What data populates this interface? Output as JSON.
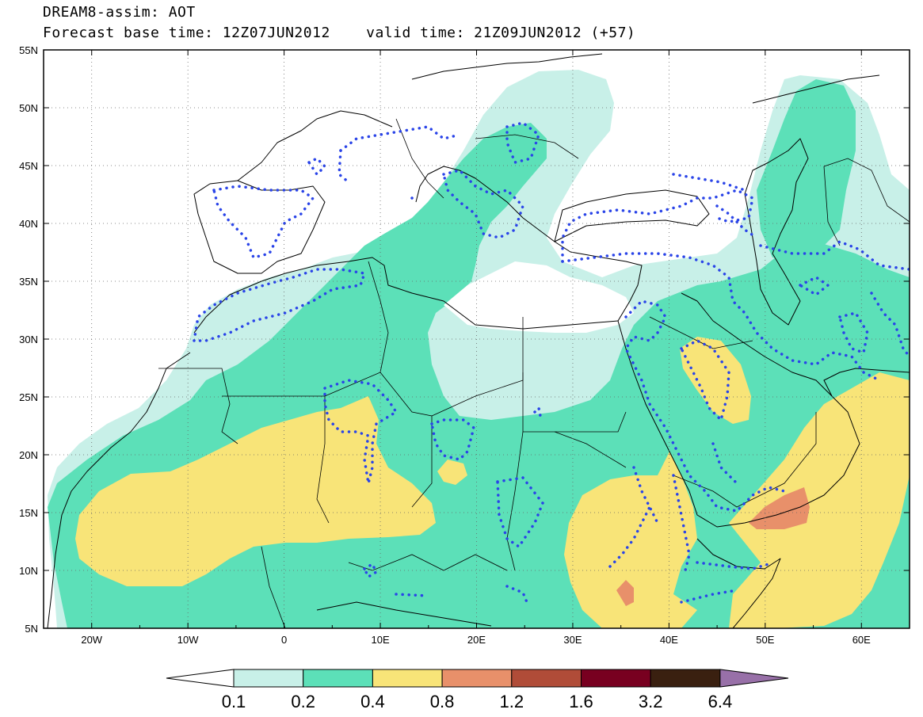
{
  "title": {
    "line1": "DREAM8-assim: AOT",
    "line2": "Forecast base time: 12Z07JUN2012    valid time: 21Z09JUN2012 (+57)"
  },
  "map": {
    "lon_range": [
      -25,
      65
    ],
    "lat_range": [
      5,
      55
    ],
    "lat_ticks": [
      {
        "value": 55,
        "label": "55N"
      },
      {
        "value": 50,
        "label": "50N"
      },
      {
        "value": 45,
        "label": "45N"
      },
      {
        "value": 40,
        "label": "40N"
      },
      {
        "value": 35,
        "label": "35N"
      },
      {
        "value": 30,
        "label": "30N"
      },
      {
        "value": 25,
        "label": "25N"
      },
      {
        "value": 20,
        "label": "20N"
      },
      {
        "value": 15,
        "label": "15N"
      },
      {
        "value": 10,
        "label": "10N"
      },
      {
        "value": 5,
        "label": "5N"
      }
    ],
    "lon_ticks": [
      {
        "value": -20,
        "label": "20W"
      },
      {
        "value": -10,
        "label": "10W"
      },
      {
        "value": 0,
        "label": "0"
      },
      {
        "value": 10,
        "label": "10E"
      },
      {
        "value": 20,
        "label": "20E"
      },
      {
        "value": 30,
        "label": "30E"
      },
      {
        "value": 40,
        "label": "40E"
      },
      {
        "value": 50,
        "label": "50E"
      },
      {
        "value": 60,
        "label": "60E"
      }
    ],
    "grid": true
  },
  "colorbar": {
    "levels": [
      "0.1",
      "0.2",
      "0.4",
      "0.8",
      "1.2",
      "1.6",
      "3.2",
      "6.4"
    ],
    "colors": [
      "#ffffff",
      "#c8f0e8",
      "#5ce0b8",
      "#f8e478",
      "#e8906a",
      "#b04c38",
      "#780020",
      "#3a2010",
      "#9870a8"
    ]
  }
}
